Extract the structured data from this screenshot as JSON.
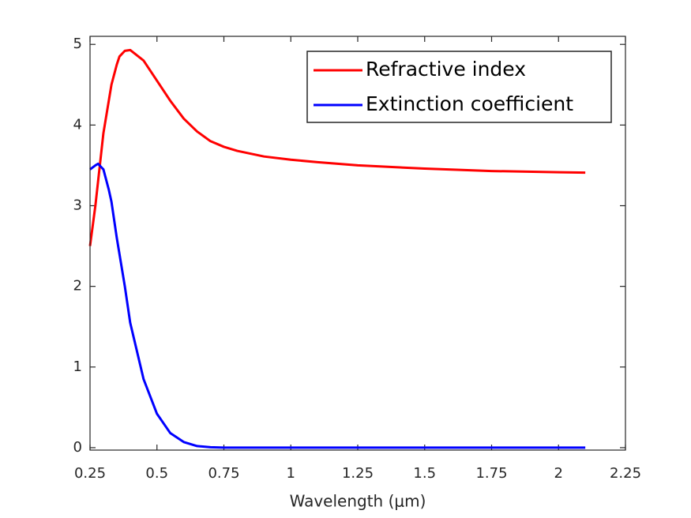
{
  "chart_data": {
    "type": "line",
    "x_label": "Wavelength (μm)",
    "x": [
      0.25,
      0.27,
      0.28,
      0.3,
      0.32,
      0.33,
      0.35,
      0.36,
      0.38,
      0.4,
      0.45,
      0.5,
      0.55,
      0.6,
      0.65,
      0.7,
      0.75,
      0.8,
      0.9,
      1.0,
      1.1,
      1.25,
      1.5,
      1.75,
      2.0,
      2.1
    ],
    "series": [
      {
        "name": "Refractive index",
        "color": "#ff0000",
        "values": [
          2.5,
          3.0,
          3.3,
          3.9,
          4.3,
          4.5,
          4.75,
          4.85,
          4.92,
          4.93,
          4.8,
          4.55,
          4.3,
          4.08,
          3.92,
          3.8,
          3.73,
          3.68,
          3.61,
          3.57,
          3.54,
          3.5,
          3.46,
          3.43,
          3.415,
          3.41
        ]
      },
      {
        "name": "Extinction coefficient",
        "color": "#0000ff",
        "values": [
          3.45,
          3.5,
          3.52,
          3.45,
          3.2,
          3.05,
          2.6,
          2.4,
          2.0,
          1.55,
          0.85,
          0.42,
          0.18,
          0.07,
          0.02,
          0.005,
          0,
          0,
          0,
          0,
          0,
          0,
          0,
          0,
          0,
          0
        ]
      }
    ],
    "xlim": [
      0.25,
      2.25
    ],
    "xticks": [
      0.25,
      0.5,
      0.75,
      1,
      1.25,
      1.5,
      1.75,
      2,
      2.25
    ],
    "ylim": [
      -0.03,
      5.1
    ],
    "yticks": [
      0,
      1,
      2,
      3,
      4,
      5
    ],
    "grid": false,
    "legend": "top-right"
  }
}
